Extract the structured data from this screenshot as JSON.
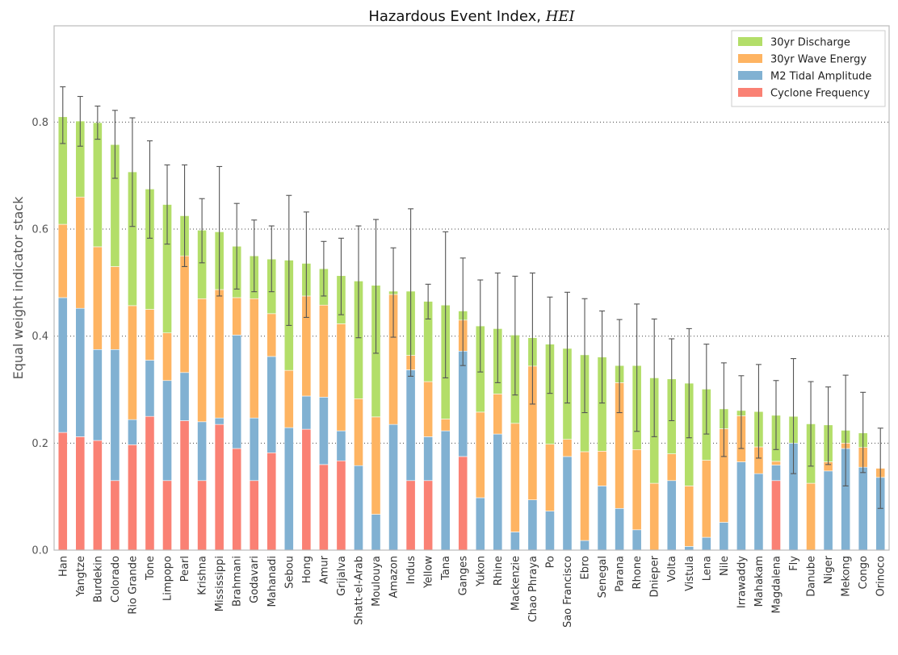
{
  "chart_data": {
    "type": "bar",
    "stacked": true,
    "title": "Hazardous Event Index, ",
    "title_symbol": "HEI",
    "xlabel": "",
    "ylabel": "Equal weight indicator stack",
    "ylim": [
      0,
      0.98
    ],
    "yticks": [
      0.0,
      0.2,
      0.4,
      0.6,
      0.8
    ],
    "ytick_labels": [
      "0.0",
      "0.2",
      "0.4",
      "0.6",
      "0.8"
    ],
    "grid": "horizontal dotted",
    "legend_position": "top-right",
    "legend_order": [
      3,
      2,
      1,
      0
    ],
    "categories": [
      "Han",
      "Yangtze",
      "Burdekin",
      "Colorado",
      "Rio Grande",
      "Tone",
      "Limpopo",
      "Pearl",
      "Krishna",
      "Mississippi",
      "Brahmani",
      "Godavari",
      "Mahanadi",
      "Sebou",
      "Hong",
      "Amur",
      "Grijalva",
      "Shatt-el-Arab",
      "Moulouya",
      "Amazon",
      "Indus",
      "Yellow",
      "Tana",
      "Ganges",
      "Yukon",
      "Rhine",
      "Mackenzie",
      "Chao Phraya",
      "Po",
      "Sao Francisco",
      "Ebro",
      "Senegal",
      "Parana",
      "Rhone",
      "Dnieper",
      "Volta",
      "Vistula",
      "Lena",
      "Nile",
      "Irrawaddy",
      "Mahakam",
      "Magdalena",
      "Fly",
      "Danube",
      "Niger",
      "Mekong",
      "Congo",
      "Orinoco"
    ],
    "series": [
      {
        "name": "Cyclone Frequency",
        "color": "#fa8174",
        "values": [
          0.22,
          0.212,
          0.205,
          0.13,
          0.197,
          0.25,
          0.13,
          0.242,
          0.13,
          0.235,
          0.19,
          0.13,
          0.182,
          0,
          0.226,
          0.16,
          0.167,
          0,
          0,
          0,
          0.13,
          0.13,
          0,
          0.175,
          0,
          0,
          0,
          0,
          0,
          0,
          0,
          0,
          0,
          0,
          0,
          0,
          0,
          0,
          0,
          0,
          0,
          0.13,
          0,
          0,
          0,
          0,
          0,
          0
        ]
      },
      {
        "name": "M2 Tidal Amplitude",
        "color": "#81b1d2",
        "values": [
          0.252,
          0.24,
          0.17,
          0.245,
          0.047,
          0.105,
          0.187,
          0.09,
          0.11,
          0.012,
          0.212,
          0.117,
          0.18,
          0.229,
          0.062,
          0.126,
          0.056,
          0.158,
          0.067,
          0.235,
          0.207,
          0.082,
          0.223,
          0.197,
          0.098,
          0.217,
          0.034,
          0.094,
          0.073,
          0.175,
          0.018,
          0.12,
          0.078,
          0.038,
          0,
          0.13,
          0.007,
          0.024,
          0.052,
          0.165,
          0.143,
          0.029,
          0.2,
          0,
          0.148,
          0.19,
          0.155,
          0.136
        ]
      },
      {
        "name": "30yr Wave Energy",
        "color": "#feb462",
        "values": [
          0.137,
          0.208,
          0.192,
          0.155,
          0.213,
          0.095,
          0.089,
          0.218,
          0.23,
          0.24,
          0.07,
          0.223,
          0.08,
          0.107,
          0.187,
          0.172,
          0.2,
          0.125,
          0.182,
          0.243,
          0.027,
          0.103,
          0.022,
          0.058,
          0.16,
          0.075,
          0.203,
          0.25,
          0.125,
          0.032,
          0.166,
          0.065,
          0.235,
          0.15,
          0.125,
          0.05,
          0.113,
          0.144,
          0.175,
          0.086,
          0.05,
          0.007,
          0,
          0.125,
          0.017,
          0.01,
          0.037,
          0.017
        ]
      },
      {
        "name": "30yr Discharge",
        "color": "#b3de69",
        "values": [
          0.201,
          0.142,
          0.232,
          0.228,
          0.25,
          0.225,
          0.24,
          0.075,
          0.128,
          0.108,
          0.096,
          0.08,
          0.102,
          0.206,
          0.061,
          0.068,
          0.09,
          0.22,
          0.246,
          0.006,
          0.12,
          0.15,
          0.213,
          0.017,
          0.161,
          0.122,
          0.165,
          0.053,
          0.187,
          0.17,
          0.181,
          0.176,
          0.032,
          0.157,
          0.197,
          0.14,
          0.192,
          0.133,
          0.037,
          0.01,
          0.066,
          0.086,
          0.05,
          0.111,
          0.069,
          0.024,
          0.027,
          0
        ]
      }
    ],
    "error_bars": [
      [
        0.76,
        0.866
      ],
      [
        0.755,
        0.848
      ],
      [
        0.768,
        0.83
      ],
      [
        0.695,
        0.822
      ],
      [
        0.605,
        0.808
      ],
      [
        0.583,
        0.765
      ],
      [
        0.572,
        0.72
      ],
      [
        0.53,
        0.72
      ],
      [
        0.537,
        0.657
      ],
      [
        0.475,
        0.717
      ],
      [
        0.488,
        0.648
      ],
      [
        0.483,
        0.617
      ],
      [
        0.483,
        0.606
      ],
      [
        0.42,
        0.663
      ],
      [
        0.435,
        0.632
      ],
      [
        0.475,
        0.577
      ],
      [
        0.44,
        0.583
      ],
      [
        0.397,
        0.606
      ],
      [
        0.368,
        0.618
      ],
      [
        0.398,
        0.565
      ],
      [
        0.325,
        0.638
      ],
      [
        0.432,
        0.497
      ],
      [
        0.322,
        0.595
      ],
      [
        0.345,
        0.546
      ],
      [
        0.333,
        0.505
      ],
      [
        0.313,
        0.518
      ],
      [
        0.29,
        0.512
      ],
      [
        0.273,
        0.518
      ],
      [
        0.293,
        0.473
      ],
      [
        0.275,
        0.482
      ],
      [
        0.257,
        0.47
      ],
      [
        0.275,
        0.447
      ],
      [
        0.257,
        0.431
      ],
      [
        0.222,
        0.46
      ],
      [
        0.212,
        0.432
      ],
      [
        0.242,
        0.395
      ],
      [
        0.21,
        0.414
      ],
      [
        0.217,
        0.385
      ],
      [
        0.175,
        0.35
      ],
      [
        0.19,
        0.326
      ],
      [
        0.172,
        0.347
      ],
      [
        0.188,
        0.317
      ],
      [
        0.143,
        0.358
      ],
      [
        0.157,
        0.315
      ],
      [
        0.16,
        0.305
      ],
      [
        0.12,
        0.327
      ],
      [
        0.145,
        0.295
      ],
      [
        0.078,
        0.228
      ]
    ]
  }
}
